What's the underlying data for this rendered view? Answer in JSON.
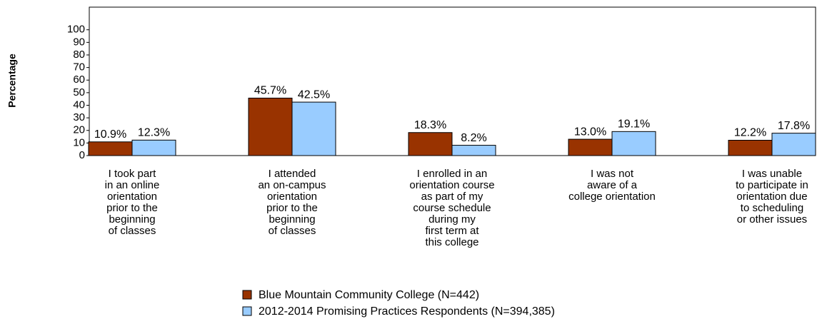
{
  "chart_data": {
    "type": "bar",
    "y_label": "Percentage",
    "categories": [
      [
        "I took part",
        "in an online",
        "orientation",
        "prior to the",
        "beginning",
        "of classes"
      ],
      [
        "I attended",
        "an on-campus",
        "orientation",
        "prior to the",
        "beginning",
        "of classes"
      ],
      [
        "I enrolled in an",
        "orientation course",
        "as part of my",
        "course schedule",
        "during my",
        "first term at",
        "this college"
      ],
      [
        "I was not",
        "aware of a",
        "college orientation"
      ],
      [
        "I was unable",
        "to participate in",
        "orientation due",
        "to scheduling",
        "or other issues"
      ]
    ],
    "series": [
      {
        "name": "Blue Mountain Community College (N=442)",
        "color": "#993300",
        "values": [
          10.9,
          45.7,
          18.3,
          13.0,
          12.2
        ],
        "value_labels": [
          "10.9%",
          "45.7%",
          "18.3%",
          "13.0%",
          "12.2%"
        ]
      },
      {
        "name": "2012-2014 Promising Practices Respondents (N=394,385)",
        "color": "#99ccff",
        "values": [
          12.3,
          42.5,
          8.2,
          19.1,
          17.8
        ],
        "value_labels": [
          "12.3%",
          "42.5%",
          "8.2%",
          "19.1%",
          "17.8%"
        ]
      }
    ],
    "ylim": [
      0,
      118
    ],
    "yticks": [
      0,
      10,
      20,
      30,
      40,
      50,
      60,
      70,
      80,
      90,
      100
    ]
  }
}
